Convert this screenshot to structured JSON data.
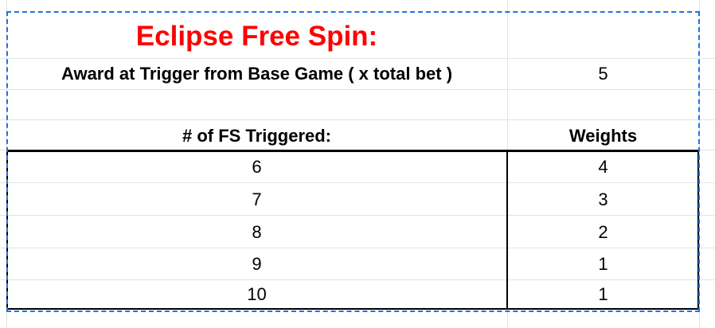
{
  "sheet": {
    "title": "Eclipse Free Spin:",
    "award_label": "Award at Trigger from Base Game ( x total bet )",
    "award_value": "5",
    "col_header_fs": "# of FS Triggered:",
    "col_header_weights": "Weights",
    "rows": [
      {
        "fs": "6",
        "weight": "4"
      },
      {
        "fs": "7",
        "weight": "3"
      },
      {
        "fs": "8",
        "weight": "2"
      },
      {
        "fs": "9",
        "weight": "1"
      },
      {
        "fs": "10",
        "weight": "1"
      }
    ]
  },
  "colors": {
    "title": "#ff0000",
    "selection": "#1a73e8",
    "grid": "#e2e3e3"
  }
}
